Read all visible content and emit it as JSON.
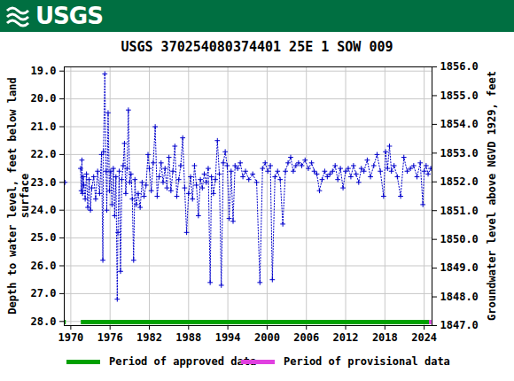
{
  "header": "USGS",
  "chart_data": {
    "type": "line",
    "title": "USGS 370254080374401 25E  1 SOW 009",
    "y_label": "Depth to water level, feet below land\nsurface",
    "y2_label": "Groundwater level above NGVD 1929, feet",
    "xlim": [
      1969.0,
      2025.2
    ],
    "xticks": [
      1970,
      1976,
      1982,
      1988,
      1994,
      2000,
      2006,
      2012,
      2018,
      2024
    ],
    "ylim": [
      18.85,
      28.15
    ],
    "yticks": [
      {
        "value": 19,
        "label": "19.0"
      },
      {
        "value": 20,
        "label": "20.0"
      },
      {
        "value": 21,
        "label": "21.0"
      },
      {
        "value": 22,
        "label": "22.0"
      },
      {
        "value": 23,
        "label": "23.0"
      },
      {
        "value": 24,
        "label": "24.0"
      },
      {
        "value": 25,
        "label": "25.0"
      },
      {
        "value": 26,
        "label": "26.0"
      },
      {
        "value": 27,
        "label": "27.0"
      },
      {
        "value": 28,
        "label": "28.0"
      }
    ],
    "y2lim": [
      1856,
      1847
    ],
    "y2ticks": [
      {
        "value": 1856,
        "label": "1856.0"
      },
      {
        "value": 1855,
        "label": "1855.0"
      },
      {
        "value": 1854,
        "label": "1854.0"
      },
      {
        "value": 1853,
        "label": "1853.0"
      },
      {
        "value": 1852,
        "label": "1852.0"
      },
      {
        "value": 1851,
        "label": "1851.0"
      },
      {
        "value": 1850,
        "label": "1850.0"
      },
      {
        "value": 1849,
        "label": "1849.0"
      },
      {
        "value": 1848,
        "label": "1848.0"
      },
      {
        "value": 1847,
        "label": "1847.0"
      }
    ],
    "grid": true,
    "series": [
      {
        "color": "#0000cc",
        "marker": "plus",
        "line_style": "dotted",
        "x": [
          1969.1,
          1970.5,
          1971.5,
          1971.6,
          1971.7,
          1971.8,
          1971.9,
          1972.0,
          1972.2,
          1972.4,
          1972.6,
          1972.8,
          1973.0,
          1973.2,
          1973.5,
          1973.8,
          1974.1,
          1974.4,
          1974.7,
          1974.9,
          1975.0,
          1975.2,
          1975.4,
          1975.5,
          1975.7,
          1975.9,
          1976.1,
          1976.3,
          1976.5,
          1976.7,
          1976.9,
          1977.1,
          1977.2,
          1977.4,
          1977.6,
          1977.8,
          1978.0,
          1978.2,
          1978.4,
          1978.6,
          1978.8,
          1979.0,
          1979.2,
          1979.4,
          1979.6,
          1979.8,
          1980.0,
          1980.3,
          1980.6,
          1980.9,
          1981.2,
          1981.5,
          1981.8,
          1982.0,
          1982.3,
          1982.6,
          1982.9,
          1983.2,
          1983.5,
          1983.8,
          1984.1,
          1984.4,
          1984.7,
          1985.0,
          1985.3,
          1985.6,
          1985.9,
          1986.2,
          1986.5,
          1986.8,
          1987.1,
          1987.4,
          1987.7,
          1988.0,
          1988.3,
          1988.6,
          1988.9,
          1989.2,
          1989.5,
          1989.8,
          1990.1,
          1990.4,
          1990.7,
          1991.0,
          1991.3,
          1991.5,
          1991.8,
          1992.1,
          1992.4,
          1992.7,
          1993.0,
          1993.3,
          1993.6,
          1993.9,
          1994.2,
          1994.5,
          1994.8,
          1995.1,
          1995.5,
          1995.9,
          1996.3,
          1996.7,
          1997.2,
          1997.8,
          1998.4,
          1998.9,
          1999.3,
          1999.7,
          2000.1,
          2000.5,
          2000.8,
          2001.2,
          2001.6,
          2002.0,
          2002.4,
          2002.8,
          2003.2,
          2003.6,
          2004.0,
          2004.4,
          2004.8,
          2005.3,
          2005.8,
          2006.3,
          2006.8,
          2007.2,
          2007.6,
          2008.0,
          2008.4,
          2008.8,
          2009.2,
          2009.6,
          2010.0,
          2010.4,
          2010.8,
          2011.2,
          2011.6,
          2012.0,
          2012.4,
          2012.8,
          2013.2,
          2013.6,
          2014.0,
          2014.4,
          2014.8,
          2015.3,
          2015.8,
          2016.3,
          2016.8,
          2017.3,
          2017.8,
          2018.1,
          2018.4,
          2018.7,
          2019.0,
          2019.4,
          2019.9,
          2020.4,
          2020.9,
          2021.4,
          2021.9,
          2022.4,
          2022.9,
          2023.4,
          2023.8,
          2024.0,
          2024.3,
          2024.6,
          2025.0
        ],
        "values": [
          23.0,
          null,
          22.5,
          23.3,
          22.2,
          23.4,
          22.8,
          23.1,
          23.6,
          22.7,
          23.9,
          22.9,
          24.0,
          23.2,
          22.8,
          23.6,
          22.6,
          23.4,
          22.0,
          25.8,
          21.9,
          19.1,
          22.6,
          24.0,
          20.5,
          23.3,
          22.6,
          23.8,
          22.5,
          24.2,
          22.8,
          27.2,
          24.8,
          22.6,
          26.2,
          22.9,
          22.4,
          21.6,
          23.4,
          22.5,
          20.4,
          23.0,
          22.7,
          23.6,
          25.8,
          22.9,
          23.8,
          23.4,
          23.9,
          23.0,
          23.5,
          23.1,
          22.0,
          22.5,
          23.3,
          22.3,
          21.0,
          23.5,
          22.8,
          22.3,
          23.0,
          22.5,
          23.2,
          22.1,
          23.3,
          22.6,
          21.7,
          23.5,
          22.9,
          22.4,
          21.4,
          23.2,
          24.8,
          23.4,
          22.8,
          23.6,
          22.4,
          23.1,
          24.2,
          22.9,
          23.2,
          22.7,
          23.0,
          22.5,
          26.6,
          22.8,
          23.4,
          22.9,
          21.5,
          22.7,
          26.7,
          22.3,
          21.9,
          22.4,
          24.3,
          22.6,
          24.4,
          22.4,
          22.5,
          22.3,
          22.8,
          22.6,
          22.9,
          22.7,
          23.0,
          26.6,
          22.5,
          22.3,
          22.6,
          22.4,
          26.5,
          22.8,
          22.6,
          22.9,
          24.5,
          22.6,
          22.3,
          22.1,
          22.6,
          22.4,
          22.3,
          22.4,
          22.2,
          22.5,
          22.3,
          22.6,
          22.7,
          23.3,
          22.9,
          22.6,
          22.8,
          22.7,
          22.6,
          22.4,
          22.9,
          22.5,
          23.2,
          22.6,
          22.5,
          22.8,
          22.4,
          22.7,
          23.0,
          22.5,
          22.6,
          22.2,
          22.8,
          22.4,
          22.0,
          22.6,
          23.5,
          21.9,
          22.5,
          21.7,
          22.6,
          22.4,
          22.8,
          23.5,
          22.1,
          22.6,
          22.5,
          22.4,
          22.8,
          22.3,
          23.8,
          22.6,
          22.4,
          22.7,
          22.5
        ]
      }
    ],
    "periods": [
      {
        "name": "Period of approved data",
        "color": "#00a000",
        "ranges": [
          [
            1968.95,
            1969.3
          ],
          [
            1971.6,
            2024.8
          ]
        ]
      },
      {
        "name": "Period of provisional data",
        "color": "#e040e0",
        "ranges": [
          [
            2024.8,
            2025.15
          ]
        ]
      }
    ]
  }
}
